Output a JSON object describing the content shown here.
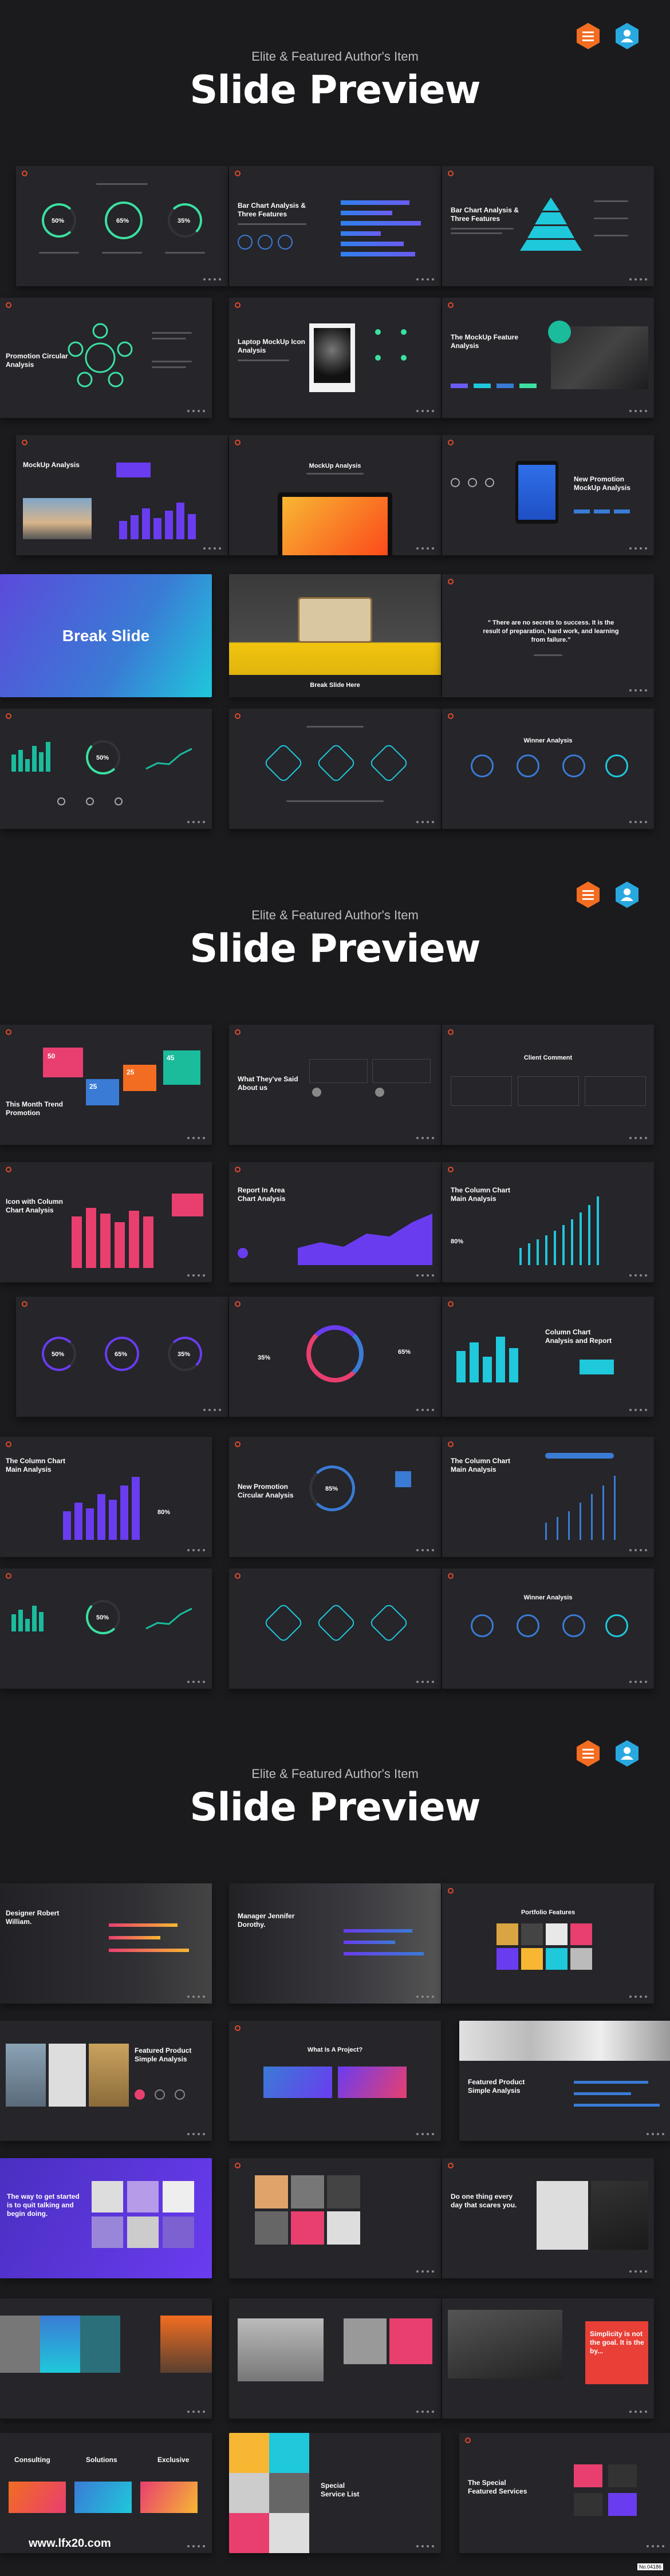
{
  "sections": [
    {
      "kicker": "Elite & Featured Author's Item",
      "title": "Slide Preview"
    },
    {
      "kicker": "Elite & Featured Author's Item",
      "title": "Slide Preview"
    },
    {
      "kicker": "Elite & Featured Author's Item",
      "title": "Slide Preview"
    }
  ],
  "badges": {
    "first": "hexagon-menu-icon",
    "second": "hexagon-person-icon",
    "colors": [
      "#f26d21",
      "#29a8e0"
    ]
  },
  "slides": {
    "s1": {
      "p1": "50%",
      "p2": "65%",
      "p3": "35%"
    },
    "s2": {
      "title": "Bar Chart Analysis & Three Features"
    },
    "s3": {
      "title": "Bar Chart Analysis & Three Features"
    },
    "s4": {
      "title": "Promotion Circular Analysis"
    },
    "s5": {
      "title": "Laptop MockUp Icon Analysis"
    },
    "s6": {
      "title": "The MockUp Feature Analysis"
    },
    "s7": {
      "title": "MockUp Analysis"
    },
    "s8": {
      "title": "MockUp Analysis"
    },
    "s9": {
      "title": "New Promotion MockUp Analysis"
    },
    "s10": {
      "title": "Break Slide"
    },
    "s11": {
      "caption": "Break Slide Here"
    },
    "s12": {
      "quote": "\" There are no secrets to success. It is the result of preparation, hard work, and learning from failure.\""
    },
    "s13": {
      "p": "50%"
    },
    "s15": {
      "title": "Winner Analysis"
    },
    "s16": {
      "title": "This Month Trend Promotion",
      "v1": "50",
      "v2": "25",
      "v3": "25",
      "v4": "45"
    },
    "s17": {
      "title": "What They've Said About us"
    },
    "s18": {
      "title": "Client Comment"
    },
    "s19": {
      "title": "Icon with Column Chart Analysis"
    },
    "s20": {
      "title": "Report In Area Chart Analysis"
    },
    "s21": {
      "title": "The Column Chart Main Analysis",
      "p": "80%"
    },
    "s22": {
      "p1": "50%",
      "p2": "65%",
      "p3": "35%"
    },
    "s23": {
      "p1": "35%",
      "p2": "65%"
    },
    "s24": {
      "title": "Column Chart Analysis and Report"
    },
    "s25": {
      "title": "The Column Chart Main Analysis",
      "p": "80%"
    },
    "s26": {
      "title": "New Promotion Circular Analysis",
      "p": "85%"
    },
    "s27": {
      "title": "The Column Chart Main Analysis"
    },
    "s28": {
      "p": "50%"
    },
    "s30": {
      "title": "Winner Analysis"
    },
    "s31": {
      "title": "Designer Robert William."
    },
    "s32": {
      "title": "Manager Jennifer Dorothy."
    },
    "s33": {
      "title": "Portfolio Features"
    },
    "s34": {
      "title": "Featured Product Simple Analysis"
    },
    "s35": {
      "title": "What Is A Project?"
    },
    "s36": {
      "title": "Featured Product Simple Analysis"
    },
    "s37": {
      "title": "The way to get started is to quit talking and begin doing."
    },
    "s39": {
      "title": "Do one thing every day that scares you."
    },
    "s42": {
      "title": "Simplicity is not the goal. It is the by..."
    },
    "s43": {
      "t1": "Consulting",
      "t2": "Solutions",
      "t3": "Exclusive"
    },
    "s44": {
      "title": "Special Service List"
    },
    "s45": {
      "title": "The Special Featured Services"
    }
  },
  "footer": {
    "site": "www.lfx20.com",
    "stamp": "No.04186"
  }
}
